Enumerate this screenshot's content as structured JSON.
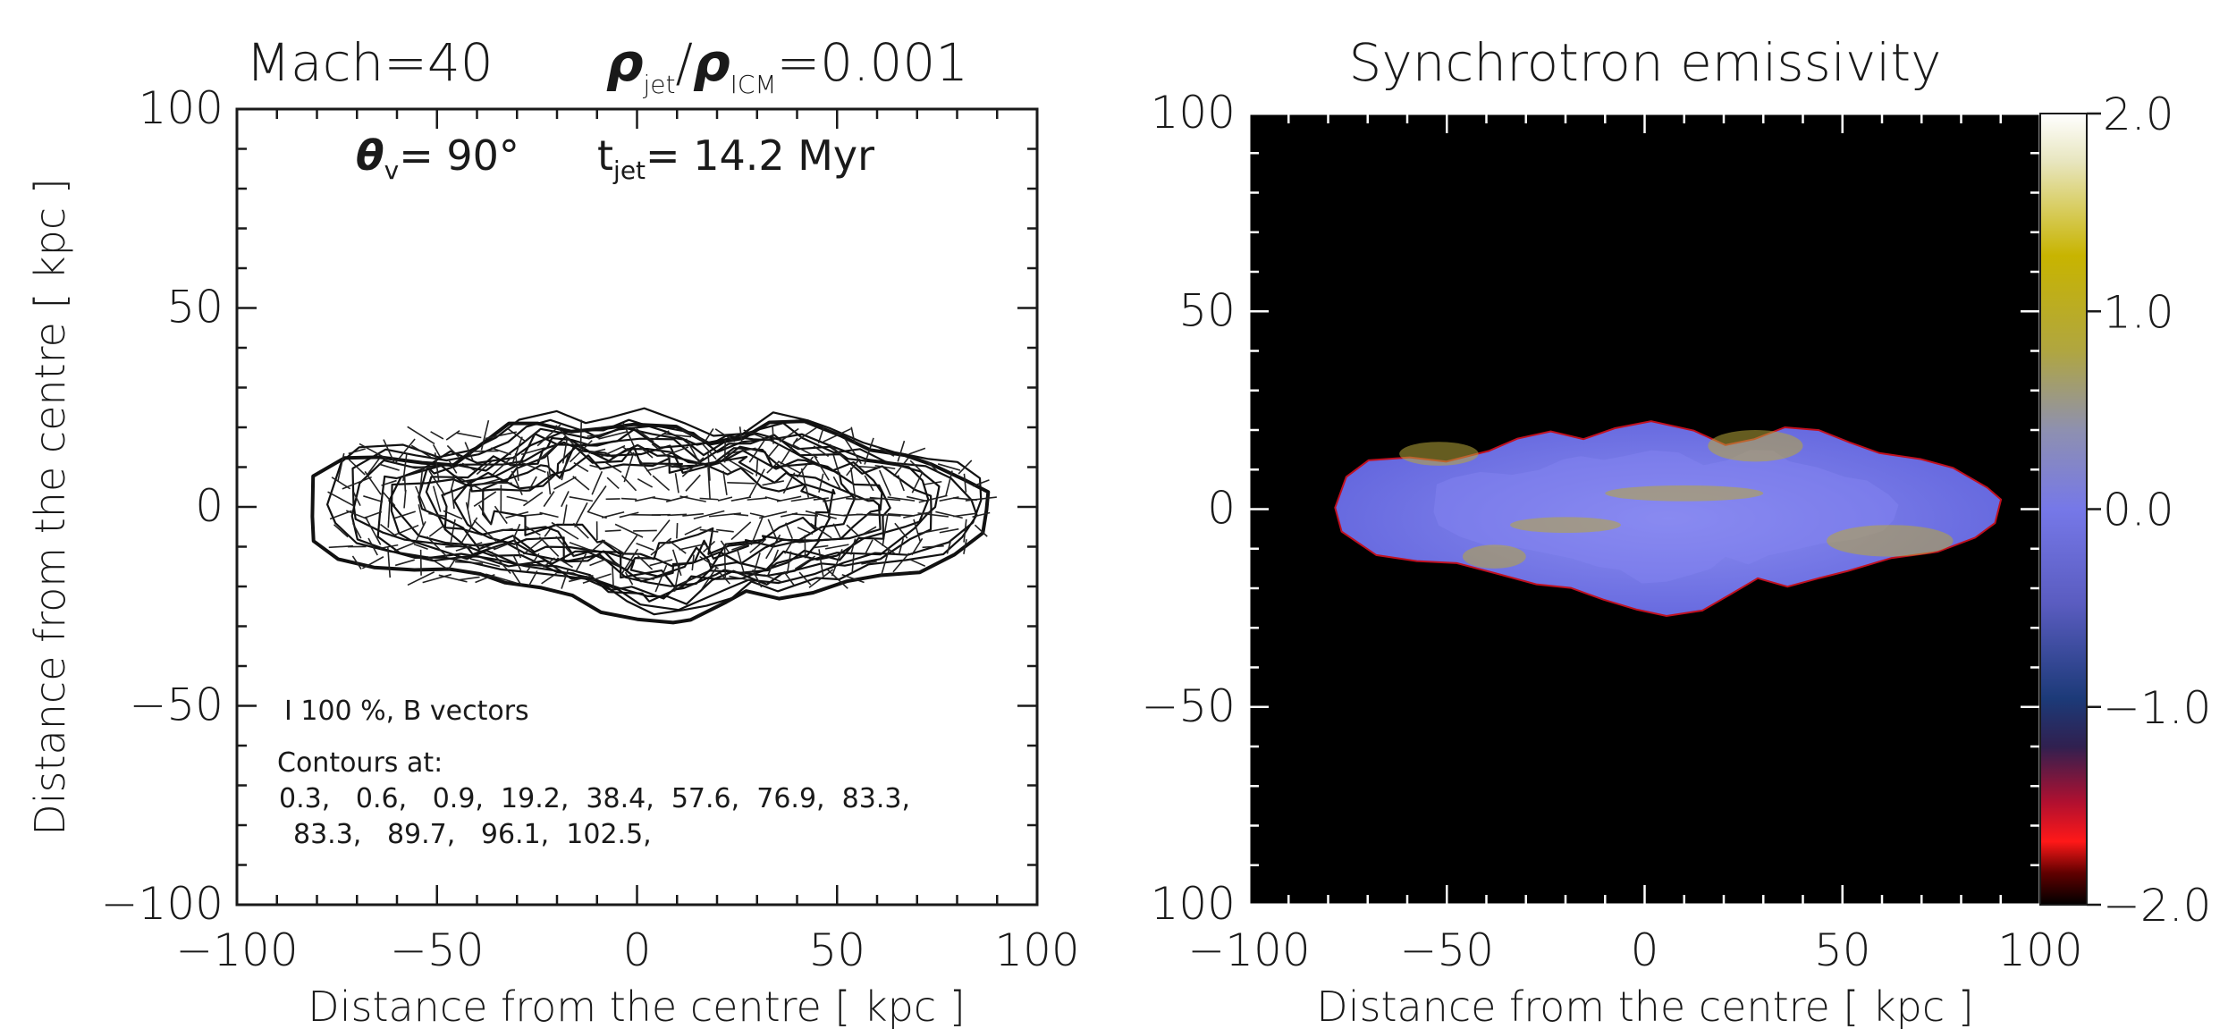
{
  "chart_data": [
    {
      "type": "contour",
      "title": {
        "mach": "Mach=40",
        "density_ratio": {
          "rho1": "ρ",
          "sub1": "jet",
          "slash": "/",
          "rho2": "ρ",
          "sub2": "ICM",
          "value": "=0.001"
        }
      },
      "annotations": {
        "theta": {
          "symbol": "θ",
          "sub": "v",
          "value": "= 90°"
        },
        "tjet": {
          "symbol": "t",
          "sub": "jet",
          "value": "= 14.2 Myr"
        },
        "vector_legend": "I 100 %, B vectors",
        "contours_heading": "Contours at:",
        "contours_line1": "0.3,   0.6,   0.9,  19.2,  38.4,  57.6,  76.9,  83.3,",
        "contours_line2": "83.3,   89.7,   96.1,  102.5,"
      },
      "xlabel": "Distance from the centre [ kpc ]",
      "ylabel": "Distance from the centre [ kpc ]",
      "xlim": [
        -100,
        100
      ],
      "ylim": [
        -100,
        100
      ],
      "xticks": [
        "−100",
        "−50",
        "0",
        "50",
        "100"
      ],
      "yticks": [
        "−100",
        "−50",
        "0",
        "50",
        "100"
      ],
      "contour_levels": [
        0.3,
        0.6,
        0.9,
        19.2,
        38.4,
        57.6,
        76.9,
        83.3,
        83.3,
        89.7,
        96.1,
        102.5
      ],
      "outline_kpc": [
        [
          -80,
          0
        ],
        [
          -78,
          9
        ],
        [
          -72,
          13
        ],
        [
          -62,
          14
        ],
        [
          -52,
          12
        ],
        [
          -43,
          13
        ],
        [
          -36,
          17
        ],
        [
          -30,
          22
        ],
        [
          -22,
          23
        ],
        [
          -14,
          20
        ],
        [
          -6,
          22
        ],
        [
          2,
          23
        ],
        [
          12,
          21
        ],
        [
          20,
          17
        ],
        [
          28,
          19
        ],
        [
          36,
          22
        ],
        [
          44,
          22
        ],
        [
          52,
          19
        ],
        [
          60,
          16
        ],
        [
          68,
          14
        ],
        [
          76,
          12
        ],
        [
          84,
          9
        ],
        [
          90,
          5
        ],
        [
          90,
          0
        ],
        [
          88,
          -6
        ],
        [
          82,
          -10
        ],
        [
          72,
          -14
        ],
        [
          62,
          -15
        ],
        [
          54,
          -17
        ],
        [
          46,
          -19
        ],
        [
          38,
          -22
        ],
        [
          30,
          -20
        ],
        [
          24,
          -22
        ],
        [
          16,
          -26
        ],
        [
          10,
          -28
        ],
        [
          2,
          -27
        ],
        [
          -6,
          -24
        ],
        [
          -14,
          -20
        ],
        [
          -22,
          -19
        ],
        [
          -30,
          -17
        ],
        [
          -38,
          -16
        ],
        [
          -46,
          -15
        ],
        [
          -54,
          -14
        ],
        [
          -64,
          -13
        ],
        [
          -72,
          -11
        ],
        [
          -78,
          -6
        ]
      ]
    },
    {
      "type": "heatmap",
      "title": "Synchrotron emissivity",
      "xlabel": "Distance from the centre [ kpc ]",
      "xlim": [
        -100,
        100
      ],
      "ylim": [
        -100,
        100
      ],
      "xticks": [
        "−100",
        "−50",
        "0",
        "50",
        "100"
      ],
      "yticks": [
        "100",
        "50",
        "0",
        "−50",
        "100"
      ],
      "colorbar": {
        "range": [
          -2.0,
          2.0
        ],
        "tick_labels": [
          "2.0",
          "1.0",
          "0.0",
          "−1.0",
          "−2.0"
        ],
        "colors": [
          "#ffffff",
          "#c8b400",
          "#8a8ca8",
          "#6a6cf0",
          "#1a2a6a",
          "#c01030",
          "#ff2020",
          "#000000"
        ]
      },
      "background_color": "#000000",
      "lobe_color": "#6f72ea",
      "highlight_color": "#b8a83a",
      "outline_kpc": [
        [
          -78,
          0
        ],
        [
          -76,
          8
        ],
        [
          -70,
          12
        ],
        [
          -60,
          13
        ],
        [
          -50,
          12
        ],
        [
          -40,
          15
        ],
        [
          -32,
          18
        ],
        [
          -24,
          19
        ],
        [
          -16,
          18
        ],
        [
          -8,
          20
        ],
        [
          2,
          22
        ],
        [
          12,
          20
        ],
        [
          20,
          16
        ],
        [
          28,
          18
        ],
        [
          36,
          21
        ],
        [
          44,
          20
        ],
        [
          52,
          17
        ],
        [
          60,
          14
        ],
        [
          70,
          12
        ],
        [
          78,
          10
        ],
        [
          86,
          6
        ],
        [
          90,
          2
        ],
        [
          89,
          -3
        ],
        [
          84,
          -7
        ],
        [
          74,
          -11
        ],
        [
          62,
          -13
        ],
        [
          52,
          -15
        ],
        [
          44,
          -17
        ],
        [
          36,
          -19
        ],
        [
          28,
          -18
        ],
        [
          22,
          -21
        ],
        [
          14,
          -25
        ],
        [
          6,
          -27
        ],
        [
          -2,
          -26
        ],
        [
          -10,
          -23
        ],
        [
          -18,
          -20
        ],
        [
          -28,
          -19
        ],
        [
          -38,
          -16
        ],
        [
          -48,
          -14
        ],
        [
          -58,
          -13
        ],
        [
          -68,
          -11
        ],
        [
          -76,
          -6
        ]
      ]
    }
  ]
}
